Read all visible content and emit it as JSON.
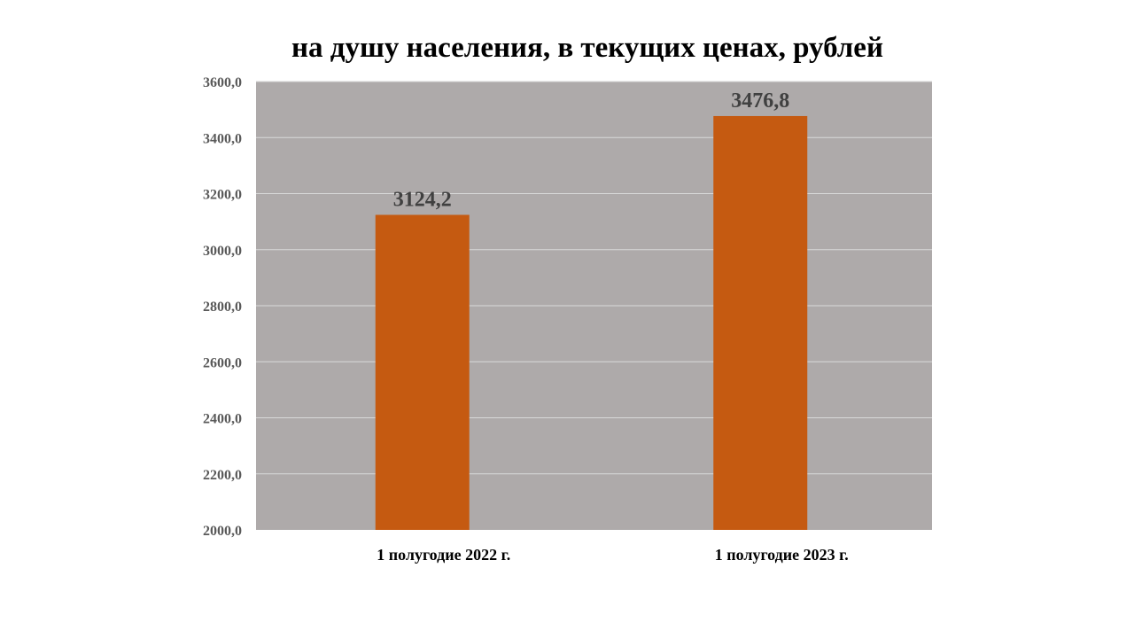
{
  "chart_data": {
    "type": "bar",
    "title": "на душу населения, в текущих ценах, рублей",
    "categories": [
      "1 полугодие 2022 г.",
      "1 полугодие 2023 г."
    ],
    "values": [
      3124.2,
      3476.8
    ],
    "data_labels": [
      "3124,2",
      "3476,8"
    ],
    "ylim": [
      2000,
      3600
    ],
    "yticks": [
      2000,
      2200,
      2400,
      2600,
      2800,
      3000,
      3200,
      3400,
      3600
    ],
    "ytick_labels": [
      "2000,0",
      "2200,0",
      "2400,0",
      "2600,0",
      "2800,0",
      "3000,0",
      "3200,0",
      "3400,0",
      "3600,0"
    ],
    "grid": true,
    "legend": "none",
    "colors": {
      "bar": "#C55A11",
      "plot_background": "#AEAAAA",
      "gridline": "#D9D9D9"
    }
  }
}
